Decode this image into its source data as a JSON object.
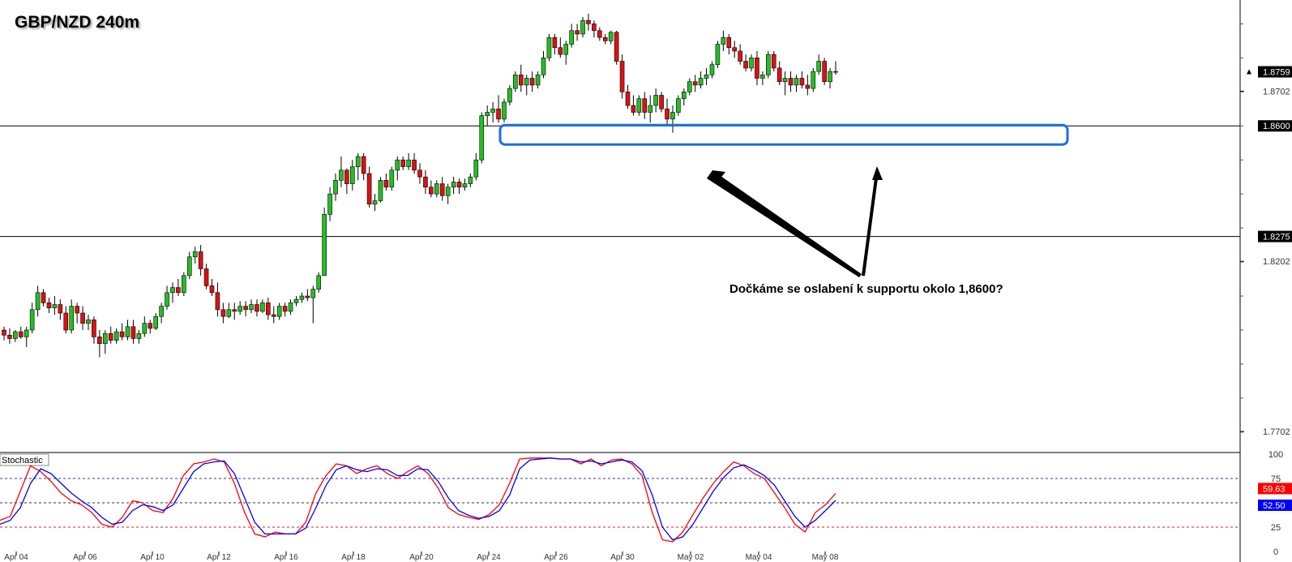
{
  "header": {
    "title": "GBP/NZD 240m"
  },
  "annotation": {
    "text": "Dočkáme se oslabení k supportu okolo 1,8600?"
  },
  "chart_data": [
    {
      "type": "candlestick",
      "title": "GBP/NZD 240m",
      "x_tick_labels": [
        "Apr 04",
        "Apr 06",
        "Apr 10",
        "Apr 12",
        "Apr 16",
        "Apr 18",
        "Apr 20",
        "Apr 24",
        "Apr 26",
        "Apr 30",
        "May 02",
        "May 04",
        "May 08"
      ],
      "y_tick_labels": [
        "1.8702",
        "1.8202",
        "1.7702"
      ],
      "ylim": [
        1.7652,
        1.897
      ],
      "price_labels": [
        {
          "label": "1.8759",
          "value": 1.8759,
          "style": "current"
        },
        {
          "label": "1.8600",
          "value": 1.86,
          "style": "level"
        },
        {
          "label": "1.8275",
          "value": 1.8275,
          "style": "level"
        }
      ],
      "horizontal_lines": [
        1.86,
        1.8275
      ],
      "support_zone": [
        1.855,
        1.86
      ],
      "candles": [
        [
          1.8,
          1.801,
          1.797,
          1.7985
        ],
        [
          1.7985,
          1.8005,
          1.796,
          1.7975
        ],
        [
          1.7975,
          1.8,
          1.7965,
          1.7995
        ],
        [
          1.7995,
          1.801,
          1.7975,
          1.798
        ],
        [
          1.798,
          1.801,
          1.795,
          1.8
        ],
        [
          1.8,
          1.808,
          1.799,
          1.806
        ],
        [
          1.806,
          1.813,
          1.804,
          1.811
        ],
        [
          1.811,
          1.812,
          1.807,
          1.808
        ],
        [
          1.808,
          1.8095,
          1.805,
          1.8065
        ],
        [
          1.8065,
          1.81,
          1.8045,
          1.8075
        ],
        [
          1.8075,
          1.809,
          1.803,
          1.805
        ],
        [
          1.805,
          1.807,
          1.799,
          1.8
        ],
        [
          1.8,
          1.809,
          1.799,
          1.807
        ],
        [
          1.807,
          1.808,
          1.802,
          1.805
        ],
        [
          1.805,
          1.807,
          1.8,
          1.802
        ],
        [
          1.802,
          1.8045,
          1.8,
          1.803
        ],
        [
          1.803,
          1.804,
          1.796,
          1.798
        ],
        [
          1.798,
          1.8,
          1.792,
          1.796
        ],
        [
          1.796,
          1.8,
          1.793,
          1.799
        ],
        [
          1.799,
          1.801,
          1.796,
          1.797
        ],
        [
          1.797,
          1.8005,
          1.796,
          1.7995
        ],
        [
          1.7995,
          1.802,
          1.797,
          1.798
        ],
        [
          1.798,
          1.803,
          1.797,
          1.801
        ],
        [
          1.801,
          1.803,
          1.796,
          1.7975
        ],
        [
          1.7975,
          1.8,
          1.796,
          1.799
        ],
        [
          1.799,
          1.804,
          1.798,
          1.802
        ],
        [
          1.802,
          1.803,
          1.799,
          1.8005
        ],
        [
          1.8005,
          1.805,
          1.8,
          1.804
        ],
        [
          1.804,
          1.808,
          1.802,
          1.807
        ],
        [
          1.807,
          1.813,
          1.806,
          1.811
        ],
        [
          1.811,
          1.814,
          1.808,
          1.8125
        ],
        [
          1.8125,
          1.815,
          1.81,
          1.811
        ],
        [
          1.811,
          1.817,
          1.81,
          1.816
        ],
        [
          1.816,
          1.823,
          1.815,
          1.8215
        ],
        [
          1.8215,
          1.8245,
          1.8195,
          1.823
        ],
        [
          1.823,
          1.825,
          1.816,
          1.818
        ],
        [
          1.818,
          1.8195,
          1.812,
          1.813
        ],
        [
          1.813,
          1.815,
          1.81,
          1.811
        ],
        [
          1.811,
          1.814,
          1.804,
          1.806
        ],
        [
          1.806,
          1.808,
          1.802,
          1.804
        ],
        [
          1.804,
          1.808,
          1.8035,
          1.806
        ],
        [
          1.806,
          1.808,
          1.803,
          1.8055
        ],
        [
          1.8055,
          1.8085,
          1.8045,
          1.807
        ],
        [
          1.807,
          1.8085,
          1.804,
          1.806
        ],
        [
          1.806,
          1.809,
          1.805,
          1.8075
        ],
        [
          1.8075,
          1.809,
          1.804,
          1.8055
        ],
        [
          1.8055,
          1.809,
          1.805,
          1.808
        ],
        [
          1.808,
          1.8095,
          1.803,
          1.8045
        ],
        [
          1.8045,
          1.807,
          1.802,
          1.804
        ],
        [
          1.804,
          1.808,
          1.803,
          1.807
        ],
        [
          1.807,
          1.808,
          1.804,
          1.8055
        ],
        [
          1.8055,
          1.809,
          1.8045,
          1.808
        ],
        [
          1.808,
          1.81,
          1.807,
          1.809
        ],
        [
          1.809,
          1.811,
          1.808,
          1.81
        ],
        [
          1.81,
          1.812,
          1.8085,
          1.8095
        ],
        [
          1.8095,
          1.813,
          1.802,
          1.812
        ],
        [
          1.812,
          1.817,
          1.811,
          1.816
        ],
        [
          1.816,
          1.836,
          1.816,
          1.834
        ],
        [
          1.834,
          1.842,
          1.832,
          1.84
        ],
        [
          1.84,
          1.846,
          1.838,
          1.844
        ],
        [
          1.844,
          1.851,
          1.842,
          1.847
        ],
        [
          1.847,
          1.8475,
          1.84,
          1.843
        ],
        [
          1.843,
          1.85,
          1.841,
          1.848
        ],
        [
          1.848,
          1.852,
          1.844,
          1.851
        ],
        [
          1.851,
          1.852,
          1.844,
          1.846
        ],
        [
          1.846,
          1.848,
          1.836,
          1.837
        ],
        [
          1.837,
          1.84,
          1.835,
          1.838
        ],
        [
          1.838,
          1.845,
          1.8375,
          1.844
        ],
        [
          1.844,
          1.846,
          1.841,
          1.842
        ],
        [
          1.842,
          1.848,
          1.841,
          1.847
        ],
        [
          1.847,
          1.851,
          1.844,
          1.85
        ],
        [
          1.85,
          1.851,
          1.847,
          1.848
        ],
        [
          1.848,
          1.852,
          1.847,
          1.85
        ],
        [
          1.85,
          1.852,
          1.846,
          1.847
        ],
        [
          1.847,
          1.849,
          1.843,
          1.845
        ],
        [
          1.845,
          1.847,
          1.84,
          1.842
        ],
        [
          1.842,
          1.844,
          1.839,
          1.84
        ],
        [
          1.84,
          1.844,
          1.839,
          1.843
        ],
        [
          1.843,
          1.845,
          1.838,
          1.8395
        ],
        [
          1.8395,
          1.843,
          1.837,
          1.842
        ],
        [
          1.842,
          1.845,
          1.84,
          1.8435
        ],
        [
          1.8435,
          1.8445,
          1.84,
          1.842
        ],
        [
          1.842,
          1.8445,
          1.841,
          1.843
        ],
        [
          1.843,
          1.846,
          1.842,
          1.845
        ],
        [
          1.845,
          1.852,
          1.844,
          1.85
        ],
        [
          1.85,
          1.864,
          1.849,
          1.863
        ],
        [
          1.863,
          1.866,
          1.86,
          1.864
        ],
        [
          1.864,
          1.867,
          1.861,
          1.865
        ],
        [
          1.865,
          1.869,
          1.861,
          1.862
        ],
        [
          1.862,
          1.868,
          1.861,
          1.867
        ],
        [
          1.867,
          1.872,
          1.866,
          1.871
        ],
        [
          1.871,
          1.876,
          1.87,
          1.875
        ],
        [
          1.875,
          1.878,
          1.87,
          1.872
        ],
        [
          1.872,
          1.875,
          1.869,
          1.874
        ],
        [
          1.874,
          1.876,
          1.87,
          1.872
        ],
        [
          1.872,
          1.876,
          1.871,
          1.875
        ],
        [
          1.875,
          1.882,
          1.874,
          1.88
        ],
        [
          1.88,
          1.887,
          1.879,
          1.886
        ],
        [
          1.886,
          1.887,
          1.881,
          1.883
        ],
        [
          1.883,
          1.886,
          1.88,
          1.881
        ],
        [
          1.881,
          1.885,
          1.878,
          1.884
        ],
        [
          1.884,
          1.89,
          1.883,
          1.888
        ],
        [
          1.888,
          1.89,
          1.885,
          1.887
        ],
        [
          1.887,
          1.892,
          1.886,
          1.891
        ],
        [
          1.891,
          1.893,
          1.888,
          1.89
        ],
        [
          1.89,
          1.891,
          1.886,
          1.888
        ],
        [
          1.888,
          1.889,
          1.885,
          1.886
        ],
        [
          1.886,
          1.887,
          1.884,
          1.885
        ],
        [
          1.885,
          1.888,
          1.884,
          1.8875
        ],
        [
          1.8875,
          1.888,
          1.878,
          1.879
        ],
        [
          1.879,
          1.881,
          1.868,
          1.87
        ],
        [
          1.87,
          1.872,
          1.865,
          1.866
        ],
        [
          1.866,
          1.869,
          1.863,
          1.864
        ],
        [
          1.864,
          1.869,
          1.863,
          1.868
        ],
        [
          1.868,
          1.87,
          1.862,
          1.864
        ],
        [
          1.864,
          1.869,
          1.861,
          1.866
        ],
        [
          1.866,
          1.871,
          1.864,
          1.869
        ],
        [
          1.869,
          1.87,
          1.864,
          1.865
        ],
        [
          1.865,
          1.868,
          1.86,
          1.862
        ],
        [
          1.862,
          1.866,
          1.858,
          1.864
        ],
        [
          1.864,
          1.869,
          1.863,
          1.868
        ],
        [
          1.868,
          1.871,
          1.866,
          1.87
        ],
        [
          1.87,
          1.874,
          1.869,
          1.873
        ],
        [
          1.873,
          1.875,
          1.87,
          1.872
        ],
        [
          1.872,
          1.876,
          1.871,
          1.874
        ],
        [
          1.874,
          1.877,
          1.872,
          1.875
        ],
        [
          1.875,
          1.879,
          1.874,
          1.878
        ],
        [
          1.878,
          1.885,
          1.877,
          1.884
        ],
        [
          1.884,
          1.888,
          1.882,
          1.886
        ],
        [
          1.886,
          1.887,
          1.881,
          1.883
        ],
        [
          1.883,
          1.885,
          1.88,
          1.882
        ],
        [
          1.882,
          1.884,
          1.878,
          1.879
        ],
        [
          1.879,
          1.881,
          1.876,
          1.877
        ],
        [
          1.877,
          1.881,
          1.876,
          1.88
        ],
        [
          1.88,
          1.882,
          1.872,
          1.874
        ],
        [
          1.874,
          1.876,
          1.872,
          1.875
        ],
        [
          1.875,
          1.882,
          1.874,
          1.881
        ],
        [
          1.881,
          1.882,
          1.876,
          1.877
        ],
        [
          1.877,
          1.879,
          1.872,
          1.873
        ],
        [
          1.873,
          1.876,
          1.869,
          1.874
        ],
        [
          1.874,
          1.876,
          1.87,
          1.872
        ],
        [
          1.872,
          1.875,
          1.87,
          1.874
        ],
        [
          1.874,
          1.876,
          1.871,
          1.872
        ],
        [
          1.872,
          1.875,
          1.869,
          1.871
        ],
        [
          1.871,
          1.877,
          1.87,
          1.876
        ],
        [
          1.876,
          1.881,
          1.875,
          1.879
        ],
        [
          1.879,
          1.88,
          1.872,
          1.873
        ],
        [
          1.873,
          1.877,
          1.871,
          1.876
        ],
        [
          1.876,
          1.879,
          1.875,
          1.8759
        ]
      ]
    },
    {
      "type": "line",
      "title": "Stochastic",
      "ylim": [
        0,
        100
      ],
      "y_tick_labels": [
        "100",
        "75",
        "25",
        "0"
      ],
      "levels": [
        75,
        50,
        25
      ],
      "value_labels": [
        {
          "label": "59.63",
          "series": "%K"
        },
        {
          "label": "52.50",
          "series": "%D"
        }
      ],
      "series": [
        {
          "name": "%K",
          "color": "#ff0000",
          "values": [
            32,
            36,
            62,
            88,
            82,
            72,
            60,
            52,
            48,
            40,
            28,
            25,
            35,
            52,
            50,
            42,
            40,
            55,
            78,
            90,
            92,
            95,
            92,
            70,
            40,
            18,
            15,
            20,
            18,
            18,
            30,
            60,
            78,
            90,
            88,
            80,
            85,
            88,
            80,
            75,
            82,
            88,
            80,
            65,
            45,
            38,
            35,
            33,
            38,
            48,
            70,
            95,
            96,
            96,
            96,
            95,
            95,
            90,
            95,
            88,
            94,
            95,
            90,
            78,
            40,
            12,
            10,
            20,
            38,
            55,
            70,
            82,
            92,
            88,
            80,
            75,
            60,
            45,
            28,
            20,
            40,
            48,
            59.63
          ]
        },
        {
          "name": "%D",
          "color": "#0000ff",
          "values": [
            28,
            32,
            45,
            70,
            85,
            80,
            70,
            60,
            52,
            45,
            35,
            28,
            30,
            42,
            48,
            46,
            42,
            48,
            65,
            82,
            90,
            92,
            93,
            80,
            55,
            30,
            18,
            18,
            18,
            18,
            24,
            45,
            68,
            84,
            88,
            84,
            82,
            85,
            84,
            78,
            78,
            85,
            84,
            72,
            55,
            42,
            37,
            34,
            36,
            42,
            58,
            85,
            94,
            95,
            96,
            95,
            95,
            92,
            93,
            90,
            92,
            94,
            92,
            83,
            58,
            25,
            12,
            15,
            28,
            45,
            62,
            76,
            86,
            89,
            84,
            78,
            68,
            52,
            36,
            25,
            32,
            42,
            52.5
          ]
        }
      ]
    }
  ]
}
